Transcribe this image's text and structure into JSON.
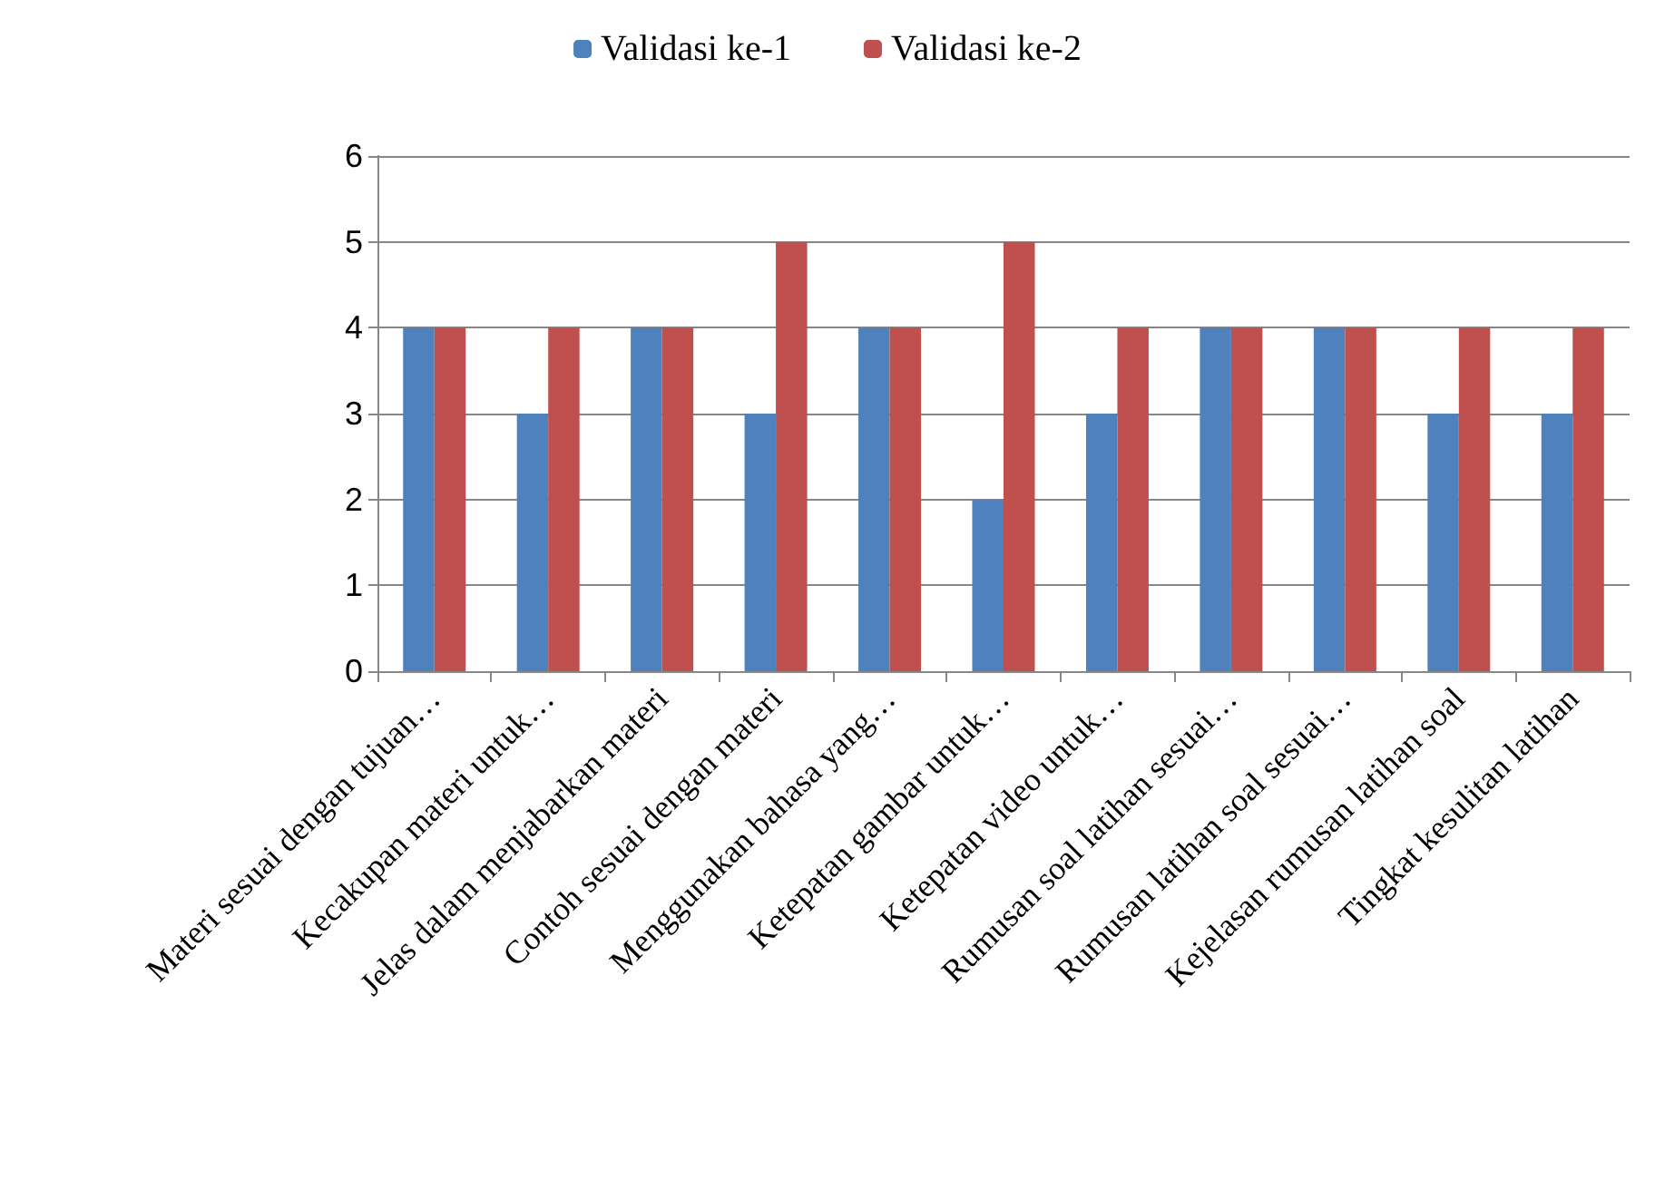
{
  "chart_data": {
    "type": "bar",
    "categories": [
      "Materi sesuai dengan tujuan…",
      "Kecakupan materi untuk…",
      "Jelas dalam menjabarkan materi",
      "Contoh sesuai dengan materi",
      "Menggunakan bahasa yang…",
      "Ketepatan gambar untuk…",
      "Ketepatan video untuk…",
      "Rumusan soal latihan sesuai…",
      "Rumusan latihan soal sesuai…",
      "Kejelasan rumusan latihan soal",
      "Tingkat kesulitan latihan"
    ],
    "series": [
      {
        "name": "Validasi ke-1",
        "color": "#4f81bd",
        "values": [
          4,
          3,
          4,
          3,
          4,
          2,
          3,
          4,
          4,
          3,
          3
        ]
      },
      {
        "name": "Validasi ke-2",
        "color": "#c0504d",
        "values": [
          4,
          4,
          4,
          5,
          4,
          5,
          4,
          4,
          4,
          4,
          4
        ]
      }
    ],
    "ylim": [
      0,
      6
    ],
    "yticks": [
      0,
      1,
      2,
      3,
      4,
      5,
      6
    ],
    "grid": "y",
    "legend": "top"
  }
}
